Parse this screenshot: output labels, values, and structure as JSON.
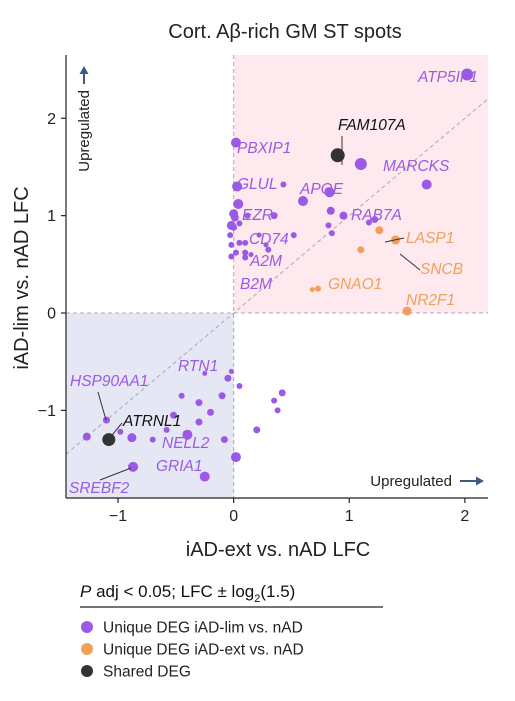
{
  "chart_data": {
    "type": "scatter",
    "title": "Cort. Aβ-rich GM ST spots",
    "xlabel": "iAD-ext vs. nAD LFC",
    "ylabel": "iAD-lim vs. nAD LFC",
    "xlim": [
      -1.45,
      2.2
    ],
    "ylim": [
      -1.9,
      2.65
    ],
    "xticks": [
      "−1",
      "0",
      "1",
      "2"
    ],
    "yticks": [
      "−1",
      "0",
      "1",
      "2"
    ],
    "xtick_values": [
      -1,
      0,
      1,
      2
    ],
    "ytick_values": [
      -1,
      0,
      1,
      2
    ],
    "quadrant_colors": {
      "upregulated_both": "#fde9ee",
      "downregulated_both": "#e6e7f5"
    },
    "corner_labels": {
      "x_upregulated": "Upregulated",
      "y_upregulated": "Upregulated"
    },
    "legend_title": "P adj < 0.05; LFC ± log2(1.5)",
    "legend_title_parts": {
      "p": "P",
      "rest": " adj < 0.05; LFC ± log",
      "sub": "2",
      "tail": "(1.5)"
    },
    "series": [
      {
        "name": "Unique DEG iAD-lim vs. nAD",
        "color": "#9b59e6",
        "points": [
          {
            "x": 2.02,
            "y": 2.45,
            "label": "ATP5IF1",
            "size": 6
          },
          {
            "x": 1.67,
            "y": 1.32,
            "size": 5
          },
          {
            "x": 1.1,
            "y": 1.53,
            "label": "MARCKS",
            "size": 6
          },
          {
            "x": 0.82,
            "y": 1.25,
            "size": 4
          },
          {
            "x": 0.84,
            "y": 1.05,
            "size": 4
          },
          {
            "x": 0.95,
            "y": 1.0,
            "size": 4
          },
          {
            "x": 0.82,
            "y": 0.9,
            "size": 3
          },
          {
            "x": 0.85,
            "y": 0.82,
            "size": 3
          },
          {
            "x": 0.83,
            "y": 1.24,
            "label": "APOE",
            "size": 5
          },
          {
            "x": 1.22,
            "y": 0.96,
            "label": "RAB7A",
            "size": 3.5
          },
          {
            "x": 1.17,
            "y": 0.93,
            "size": 3
          },
          {
            "x": 0.43,
            "y": 1.32,
            "size": 3
          },
          {
            "x": 0.6,
            "y": 1.15,
            "size": 5
          },
          {
            "x": 0.35,
            "y": 1.0,
            "size": 3.5
          },
          {
            "x": 0.12,
            "y": 1.0,
            "size": 3
          },
          {
            "x": 0.22,
            "y": 0.8,
            "size": 2.5
          },
          {
            "x": 0.52,
            "y": 0.8,
            "size": 3
          },
          {
            "x": 0.3,
            "y": 0.65,
            "size": 3
          },
          {
            "x": 0.28,
            "y": 0.7,
            "size": 2.5
          },
          {
            "x": 0.15,
            "y": 0.6,
            "size": 2.5
          },
          {
            "x": 0.02,
            "y": 1.75,
            "label": "PBXIP1",
            "size": 5
          },
          {
            "x": 0.03,
            "y": 1.3,
            "label": "GLUL",
            "size": 5
          },
          {
            "x": 0.04,
            "y": 1.12,
            "label": "EZR",
            "size": 5
          },
          {
            "x": 0.0,
            "y": 1.02,
            "size": 4.5
          },
          {
            "x": 0.01,
            "y": 0.98,
            "size": 4
          },
          {
            "x": -0.02,
            "y": 0.9,
            "label": "CD74",
            "size": 4.5
          },
          {
            "x": 0.0,
            "y": 0.88,
            "size": 3.5
          },
          {
            "x": 0.05,
            "y": 0.92,
            "size": 3
          },
          {
            "x": -0.03,
            "y": 0.8,
            "size": 3
          },
          {
            "x": 0.05,
            "y": 0.72,
            "size": 3
          },
          {
            "x": -0.02,
            "y": 0.7,
            "size": 3
          },
          {
            "x": 0.1,
            "y": 0.72,
            "label": "A2M",
            "size": 3
          },
          {
            "x": 0.1,
            "y": 0.62,
            "size": 3
          },
          {
            "x": 0.02,
            "y": 0.62,
            "size": 3
          },
          {
            "x": 0.1,
            "y": 0.57,
            "label": "B2M",
            "size": 3
          },
          {
            "x": -0.02,
            "y": 0.58,
            "size": 3
          },
          {
            "x": -0.25,
            "y": -0.62,
            "label": "RTN1",
            "size": 2.5
          },
          {
            "x": -0.05,
            "y": -0.67,
            "size": 3.5
          },
          {
            "x": -0.02,
            "y": -0.6,
            "size": 2.5
          },
          {
            "x": 0.05,
            "y": -0.75,
            "size": 3
          },
          {
            "x": 0.42,
            "y": -0.82,
            "size": 3.5
          },
          {
            "x": 0.35,
            "y": -0.9,
            "size": 3
          },
          {
            "x": 0.38,
            "y": -1.0,
            "size": 3
          },
          {
            "x": 0.2,
            "y": -1.2,
            "size": 3.5
          },
          {
            "x": -0.1,
            "y": -0.85,
            "size": 3.5
          },
          {
            "x": -0.3,
            "y": -0.92,
            "size": 3.5
          },
          {
            "x": -0.45,
            "y": -0.85,
            "size": 3
          },
          {
            "x": -0.2,
            "y": -1.02,
            "size": 3.5
          },
          {
            "x": -0.52,
            "y": -1.05,
            "size": 3.5
          },
          {
            "x": -0.3,
            "y": -1.12,
            "size": 3.5
          },
          {
            "x": -0.58,
            "y": -1.2,
            "size": 3
          },
          {
            "x": -0.4,
            "y": -1.25,
            "label": "NELL2",
            "size": 5
          },
          {
            "x": -0.08,
            "y": -1.3,
            "size": 3.5
          },
          {
            "x": 0.02,
            "y": -1.48,
            "size": 5
          },
          {
            "x": -0.25,
            "y": -1.68,
            "label": "GRIA1",
            "size": 5
          },
          {
            "x": -1.1,
            "y": -1.1,
            "label": "HSP90AA1",
            "size": 3.5
          },
          {
            "x": -1.27,
            "y": -1.27,
            "size": 4
          },
          {
            "x": -0.88,
            "y": -1.28,
            "size": 4.5
          },
          {
            "x": -0.87,
            "y": -1.58,
            "label": "SREBF2",
            "size": 5
          },
          {
            "x": -0.98,
            "y": -1.22,
            "size": 3
          },
          {
            "x": -0.7,
            "y": -1.3,
            "size": 3
          }
        ]
      },
      {
        "name": "Unique DEG iAD-ext vs. nAD",
        "color": "#f0a05a",
        "points": [
          {
            "x": 1.26,
            "y": 0.85,
            "label": "LASP1",
            "size": 4
          },
          {
            "x": 1.4,
            "y": 0.75,
            "label": "SNCB",
            "size": 4.5
          },
          {
            "x": 1.1,
            "y": 0.65,
            "label": "GNAO1",
            "size": 3.5
          },
          {
            "x": 0.73,
            "y": 0.25,
            "size": 3
          },
          {
            "x": 0.68,
            "y": 0.24,
            "size": 2.5
          },
          {
            "x": 1.5,
            "y": 0.02,
            "label": "NR2F1",
            "size": 4.5
          }
        ]
      },
      {
        "name": "Shared DEG",
        "color": "#333333",
        "points": [
          {
            "x": 0.9,
            "y": 1.62,
            "label": "FAM107A",
            "size": 7
          },
          {
            "x": -1.08,
            "y": -1.3,
            "label": "ATRNL1",
            "size": 6.5
          }
        ]
      }
    ]
  }
}
